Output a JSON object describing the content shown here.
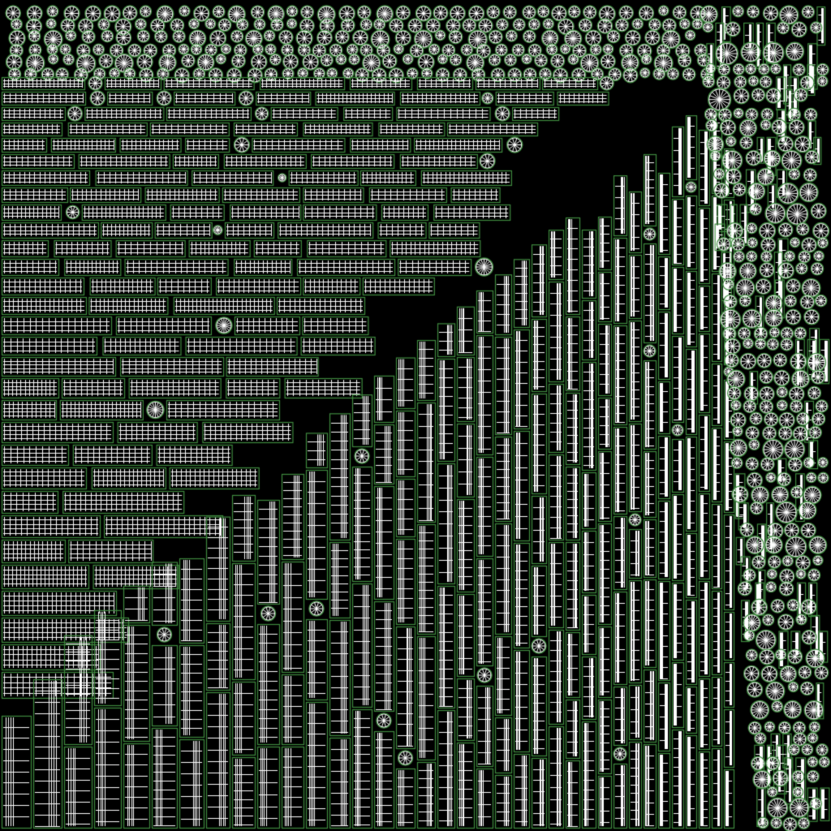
{
  "image": {
    "kind": "uv-texture-layout",
    "colors": {
      "background": "#000000",
      "island_outline": "#3f8a3f",
      "wireframe": "#ffffff"
    },
    "island_types": [
      "horizontal-grid-strip",
      "vertical-grid-strip",
      "radial-disc"
    ]
  }
}
